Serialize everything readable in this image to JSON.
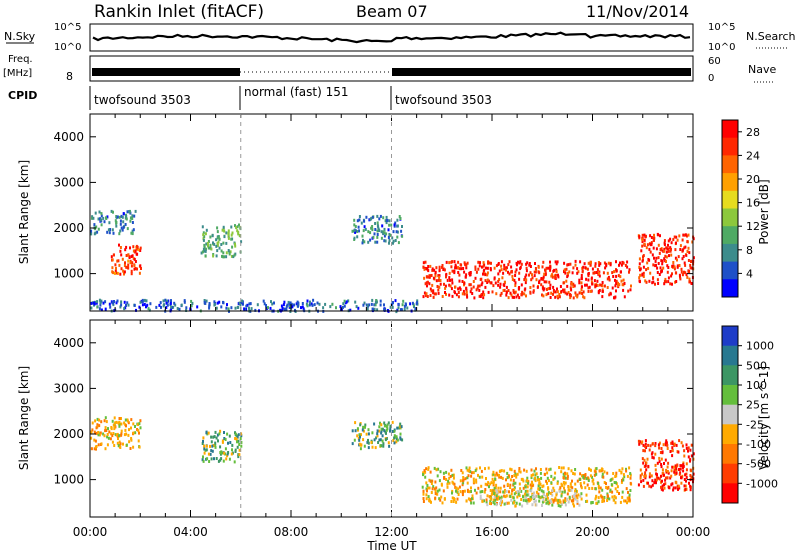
{
  "header": {
    "station": "Rankin Inlet (fitACF)",
    "beam": "Beam 07",
    "date": "11/Nov/2014"
  },
  "top_panels": {
    "nsky_label": "N.Sky",
    "nsky_ticks": [
      "10^5",
      "10^0"
    ],
    "nsearch_label": "N.Search",
    "nsearch_ticks": [
      "10^5",
      "10^0"
    ],
    "freq_label": "Freq.",
    "freq_unit": "[MHz]",
    "freq_ticks": [
      "8"
    ],
    "nave_label": "Nave",
    "nave_ticks": [
      "60",
      "0"
    ],
    "cpid_label": "CPID",
    "cpid_segments": [
      {
        "name": "twofsound 3503",
        "start": 0,
        "end": 6
      },
      {
        "name": "normal (fast) 151",
        "start": 6,
        "end": 12
      },
      {
        "name": "twofsound 3503",
        "start": 12,
        "end": 24
      }
    ]
  },
  "chart_data": [
    {
      "type": "heatmap",
      "title": "",
      "xlabel": "",
      "ylabel": "Slant Range [km]",
      "x_ticks": [
        "00:00",
        "04:00",
        "08:00",
        "12:00",
        "16:00",
        "20:00",
        "00:00"
      ],
      "xlim_hours": [
        0,
        24
      ],
      "y_ticks": [
        "1000",
        "2000",
        "3000",
        "4000"
      ],
      "ylim_km": [
        180,
        4500
      ],
      "colorbar": {
        "label": "Power [dB]",
        "ticks": [
          "4",
          "8",
          "12",
          "16",
          "20",
          "24",
          "28"
        ],
        "range": [
          0,
          30
        ],
        "colors": [
          "#0000ff",
          "#1e50c8",
          "#3c8c8c",
          "#4faa64",
          "#8cc83c",
          "#e6dc1e",
          "#ffa000",
          "#ff6400",
          "#ff2800",
          "#ff0000"
        ]
      },
      "clusters": [
        {
          "t0": 0.0,
          "t1": 1.8,
          "r0": 1900,
          "r1": 2400,
          "v": 6
        },
        {
          "t0": 0.8,
          "t1": 2.0,
          "r0": 1000,
          "r1": 1700,
          "v": 26
        },
        {
          "t0": 4.4,
          "t1": 6.0,
          "r0": 1400,
          "r1": 2100,
          "v": 10
        },
        {
          "t0": 10.4,
          "t1": 12.4,
          "r0": 1700,
          "r1": 2300,
          "v": 6
        },
        {
          "t0": 13.2,
          "t1": 21.5,
          "r0": 500,
          "r1": 1300,
          "v": 28
        },
        {
          "t0": 21.8,
          "t1": 24.0,
          "r0": 800,
          "r1": 1900,
          "v": 28
        },
        {
          "t0": 0.0,
          "t1": 13.0,
          "r0": 200,
          "r1": 450,
          "v": 4
        }
      ]
    },
    {
      "type": "heatmap",
      "title": "",
      "xlabel": "Time UT",
      "ylabel": "Slant Range [km]",
      "x_ticks": [
        "00:00",
        "04:00",
        "08:00",
        "12:00",
        "16:00",
        "20:00",
        "00:00"
      ],
      "xlim_hours": [
        0,
        24
      ],
      "y_ticks": [
        "1000",
        "2000",
        "3000",
        "4000"
      ],
      "ylim_km": [
        180,
        4500
      ],
      "colorbar": {
        "label": "Velocity [m s^-1]",
        "ticks": [
          "1000",
          "500",
          "100",
          "25",
          "-25",
          "-100",
          "-500",
          "-1000"
        ],
        "colors": [
          "#1e3cc8",
          "#287890",
          "#3c9664",
          "#64be3c",
          "#c8c8c8",
          "#ffaa00",
          "#ff7800",
          "#ff3c00",
          "#ff0000"
        ]
      },
      "clusters": [
        {
          "t0": 0.0,
          "t1": 2.0,
          "r0": 1700,
          "r1": 2400,
          "v": "orange"
        },
        {
          "t0": 4.4,
          "t1": 6.0,
          "r0": 1400,
          "r1": 2100,
          "v": "green"
        },
        {
          "t0": 10.4,
          "t1": 12.4,
          "r0": 1700,
          "r1": 2300,
          "v": "green"
        },
        {
          "t0": 13.2,
          "t1": 21.5,
          "r0": 500,
          "r1": 1300,
          "v": "orange"
        },
        {
          "t0": 15.5,
          "t1": 19.5,
          "r0": 450,
          "r1": 800,
          "v": "gray"
        },
        {
          "t0": 21.8,
          "t1": 24.0,
          "r0": 800,
          "r1": 1900,
          "v": "red"
        }
      ]
    }
  ]
}
